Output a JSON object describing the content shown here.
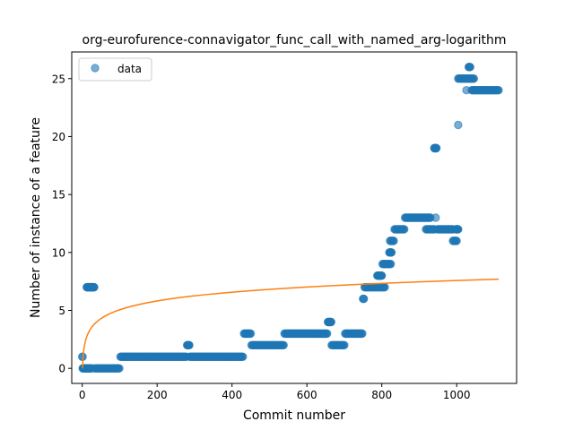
{
  "chart_data": {
    "type": "scatter",
    "title": "org-eurofurence-connavigator_func_call_with_named_arg-logarithm",
    "xlabel": "Commit number",
    "ylabel": "Number of instance of a feature",
    "xlim": [
      -28,
      1160
    ],
    "ylim": [
      -1.3,
      27.3
    ],
    "xticks": [
      0,
      200,
      400,
      600,
      800,
      1000
    ],
    "yticks": [
      0,
      5,
      10,
      15,
      20,
      25
    ],
    "grid": false,
    "legend": {
      "placement": "top-left",
      "entries": [
        "data"
      ]
    },
    "colors": {
      "points": "#1f77b4",
      "fit": "#ff7f0e"
    },
    "series": [
      {
        "name": "data",
        "kind": "points",
        "segments": [
          [
            0,
            1,
            1,
            1
          ],
          [
            1,
            8,
            0,
            1
          ],
          [
            10,
            25,
            0,
            1
          ],
          [
            12,
            32,
            7,
            1
          ],
          [
            33,
            100,
            0,
            2
          ],
          [
            102,
            279,
            1,
            2
          ],
          [
            280,
            286,
            2,
            1
          ],
          [
            287,
            430,
            1,
            2
          ],
          [
            432,
            450,
            3,
            2
          ],
          [
            452,
            538,
            2,
            2
          ],
          [
            540,
            655,
            3,
            2
          ],
          [
            656,
            665,
            4,
            1
          ],
          [
            666,
            700,
            2,
            2
          ],
          [
            702,
            748,
            3,
            2
          ],
          [
            750,
            752,
            6,
            1
          ],
          [
            754,
            808,
            7,
            2
          ],
          [
            788,
            800,
            8,
            1
          ],
          [
            802,
            824,
            9,
            2
          ],
          [
            820,
            826,
            10,
            1
          ],
          [
            822,
            832,
            11,
            2
          ],
          [
            834,
            860,
            12,
            2
          ],
          [
            862,
            930,
            13,
            2
          ],
          [
            918,
            940,
            12,
            2
          ],
          [
            940,
            946,
            19,
            1
          ],
          [
            944,
            944,
            13,
            1
          ],
          [
            948,
            990,
            12,
            2
          ],
          [
            990,
            1000,
            11,
            2
          ],
          [
            998,
            1004,
            12,
            1
          ],
          [
            1004,
            1004,
            21,
            1
          ],
          [
            1004,
            1026,
            25,
            2
          ],
          [
            1026,
            1026,
            24,
            1
          ],
          [
            1032,
            1036,
            26,
            1
          ],
          [
            1028,
            1046,
            25,
            2
          ],
          [
            1040,
            1112,
            24,
            2
          ]
        ]
      },
      {
        "name": "",
        "kind": "line",
        "model": "log",
        "coefficients": {
          "a": 1.097,
          "b": 0.0
        },
        "x_range": [
          1,
          1112
        ]
      }
    ]
  }
}
